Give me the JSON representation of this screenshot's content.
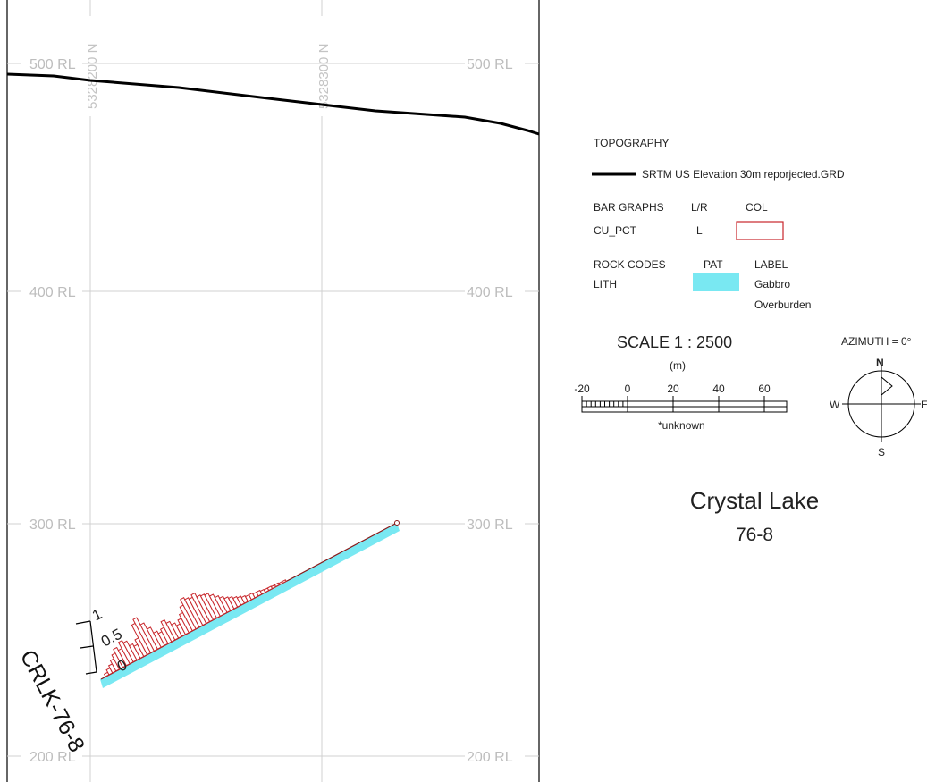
{
  "section": {
    "rl_labels": [
      "500 RL",
      "400 RL",
      "300 RL",
      "200 RL"
    ],
    "northing_labels": [
      "5328200 N",
      "5328300 N"
    ]
  },
  "drillhole": {
    "name": "CRLK-76-8",
    "bar_axis_labels": [
      "1",
      "0.5",
      "0"
    ],
    "bar_values": [
      0.05,
      0.1,
      0.15,
      0.22,
      0.3,
      0.38,
      0.32,
      0.45,
      0.4,
      0.3,
      0.25,
      0.35,
      0.62,
      0.7,
      0.55,
      0.42,
      0.3,
      0.25,
      0.3,
      0.42,
      0.35,
      0.28,
      0.22,
      0.3,
      0.38,
      0.5,
      0.62,
      0.58,
      0.55,
      0.6,
      0.52,
      0.5,
      0.48,
      0.42,
      0.35,
      0.3,
      0.25,
      0.22,
      0.18,
      0.15,
      0.12,
      0.1,
      0.1,
      0.08,
      0.08,
      0.06,
      0.05,
      0.05,
      0.04,
      0.04,
      0.03,
      0.03
    ]
  },
  "colors": {
    "topo_line": "#000000",
    "grid": "#d0d0d0",
    "lith_gabbro": "#79e8f2",
    "bar_graph": "#c8262b"
  },
  "legend": {
    "topo_heading": "TOPOGRAPHY",
    "topo_item": "SRTM US Elevation 30m reporjected.GRD",
    "bar_heading": "BAR GRAPHS",
    "bar_lr_header": "L/R",
    "bar_col_header": "COL",
    "bar_field": "CU_PCT",
    "bar_lr_value": "L",
    "rock_heading": "ROCK CODES",
    "rock_pat_header": "PAT",
    "rock_label_header": "LABEL",
    "rock_field": "LITH",
    "rock_label_1": "Gabbro",
    "rock_label_2": "Overburden"
  },
  "scale": {
    "title": "SCALE  1 : 2500",
    "unit": "(m)",
    "ticks": [
      "-20",
      "0",
      "20",
      "40",
      "60"
    ],
    "note": "*unknown"
  },
  "compass": {
    "azimuth": "AZIMUTH = 0°",
    "n": "N",
    "s": "S",
    "w": "W",
    "e": "E"
  },
  "title": {
    "name": "Crystal Lake",
    "hole": "76-8"
  }
}
